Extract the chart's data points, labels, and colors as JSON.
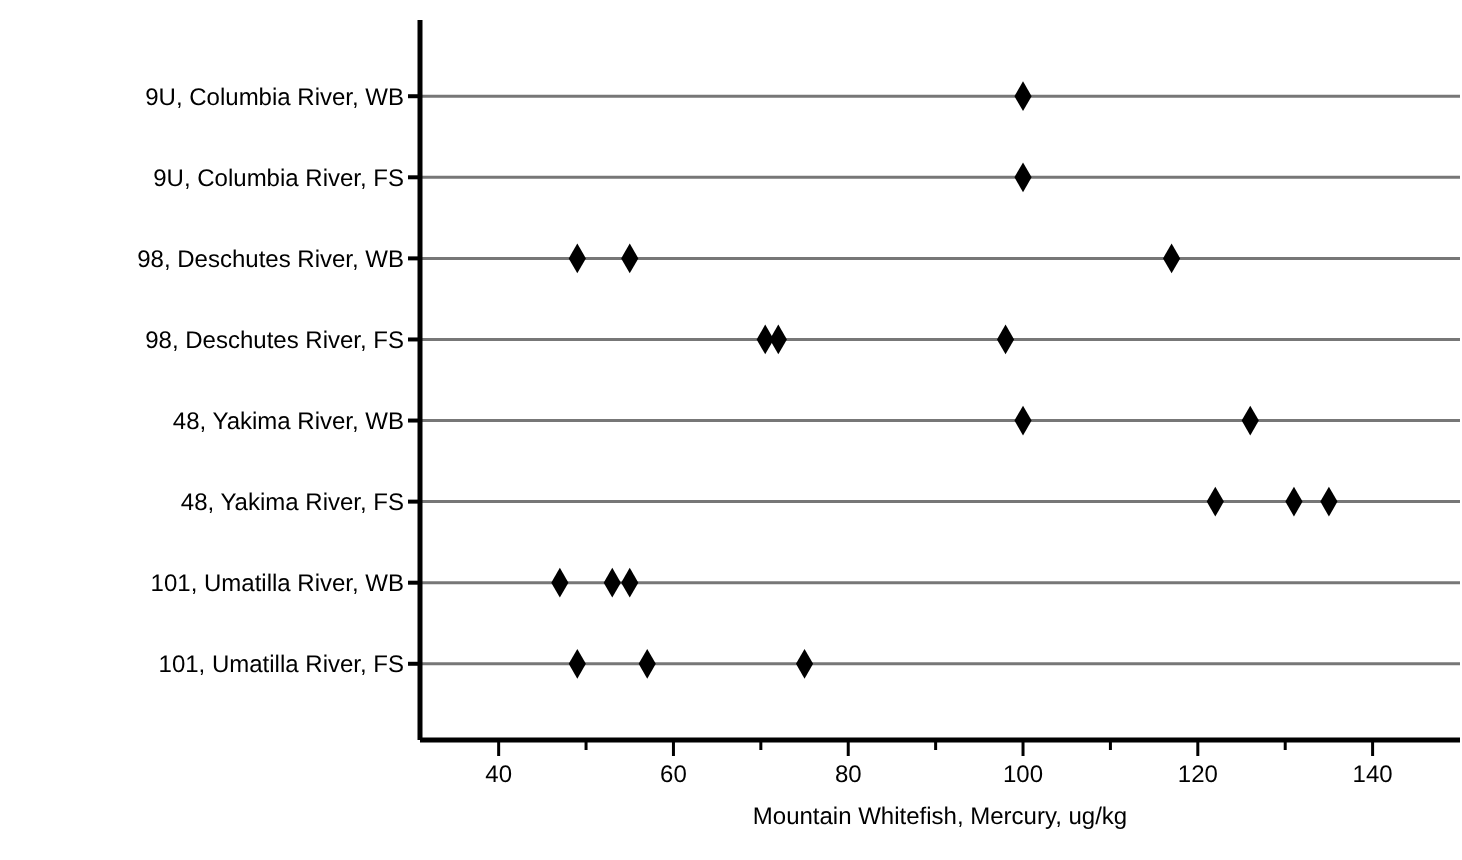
{
  "chart_data": {
    "type": "scatter",
    "orientation": "horizontal",
    "xlabel": "Mountain Whitefish, Mercury, ug/kg",
    "categories": [
      "9U, Columbia River, WB",
      "9U, Columbia River, FS",
      "98, Deschutes River, WB",
      "98, Deschutes River, FS",
      "48, Yakima River, WB",
      "48, Yakima River, FS",
      "101, Umatilla River, WB",
      "101, Umatilla River, FS"
    ],
    "series": [
      {
        "color": "#000000",
        "values": [
          100,
          100,
          49,
          70.5,
          100,
          122,
          47,
          49
        ]
      },
      {
        "color": "#000000",
        "values": [
          null,
          null,
          55,
          72,
          126,
          131,
          53,
          57
        ]
      },
      {
        "color": "#000000",
        "values": [
          null,
          null,
          117,
          98,
          null,
          135,
          55,
          75
        ]
      }
    ],
    "xlim": [
      31,
      150
    ],
    "xticks": [
      40,
      {
        "value": 50,
        "label": null
      },
      60,
      {
        "value": 70,
        "label": null
      },
      80,
      {
        "value": 90,
        "label": null
      },
      100,
      {
        "value": 110,
        "label": null
      },
      120,
      {
        "value": 130,
        "label": null
      },
      140
    ],
    "grid": "y",
    "marker": "diamond",
    "legend": false
  }
}
